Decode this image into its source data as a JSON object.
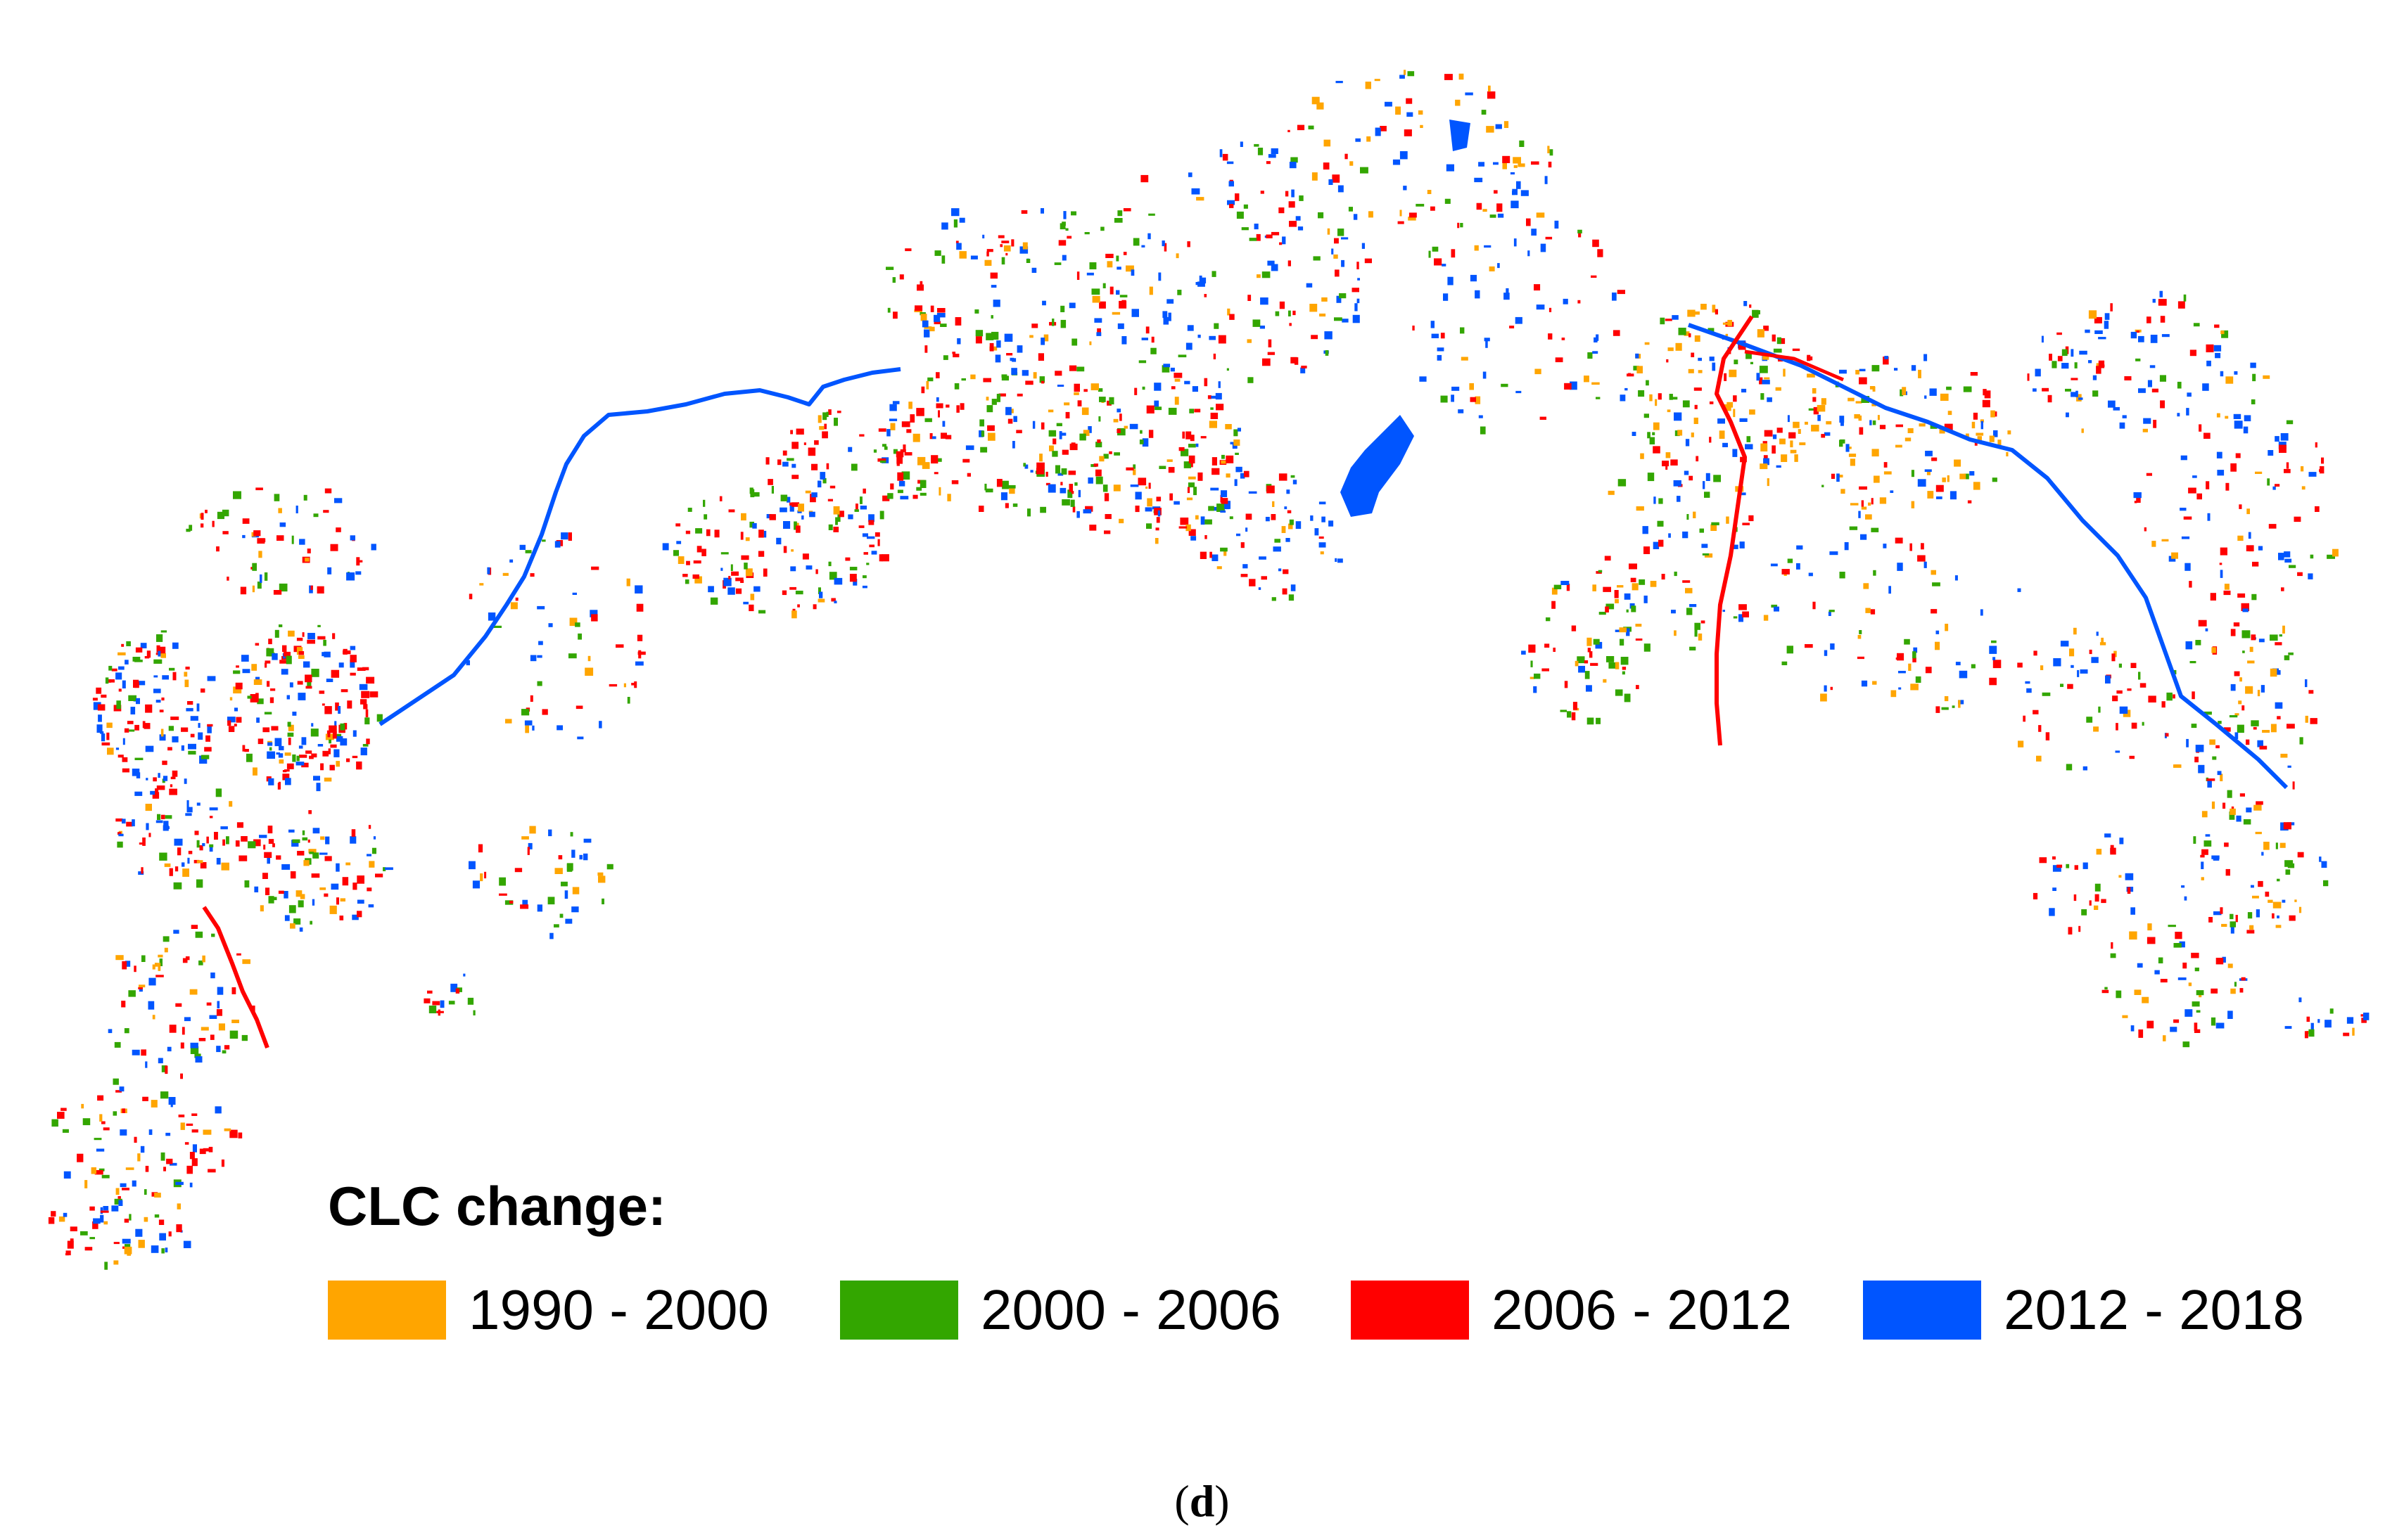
{
  "map": {
    "legend": {
      "title": "CLC change:",
      "items": [
        {
          "label": "1990 - 2000",
          "color": "#FFA500"
        },
        {
          "label": "2000 - 2006",
          "color": "#33A600"
        },
        {
          "label": "2006 - 2012",
          "color": "#FF0000"
        },
        {
          "label": "2012 - 2018",
          "color": "#0055FF"
        }
      ]
    },
    "caption_open": "(",
    "caption_letter": "d",
    "caption_close": ")"
  }
}
